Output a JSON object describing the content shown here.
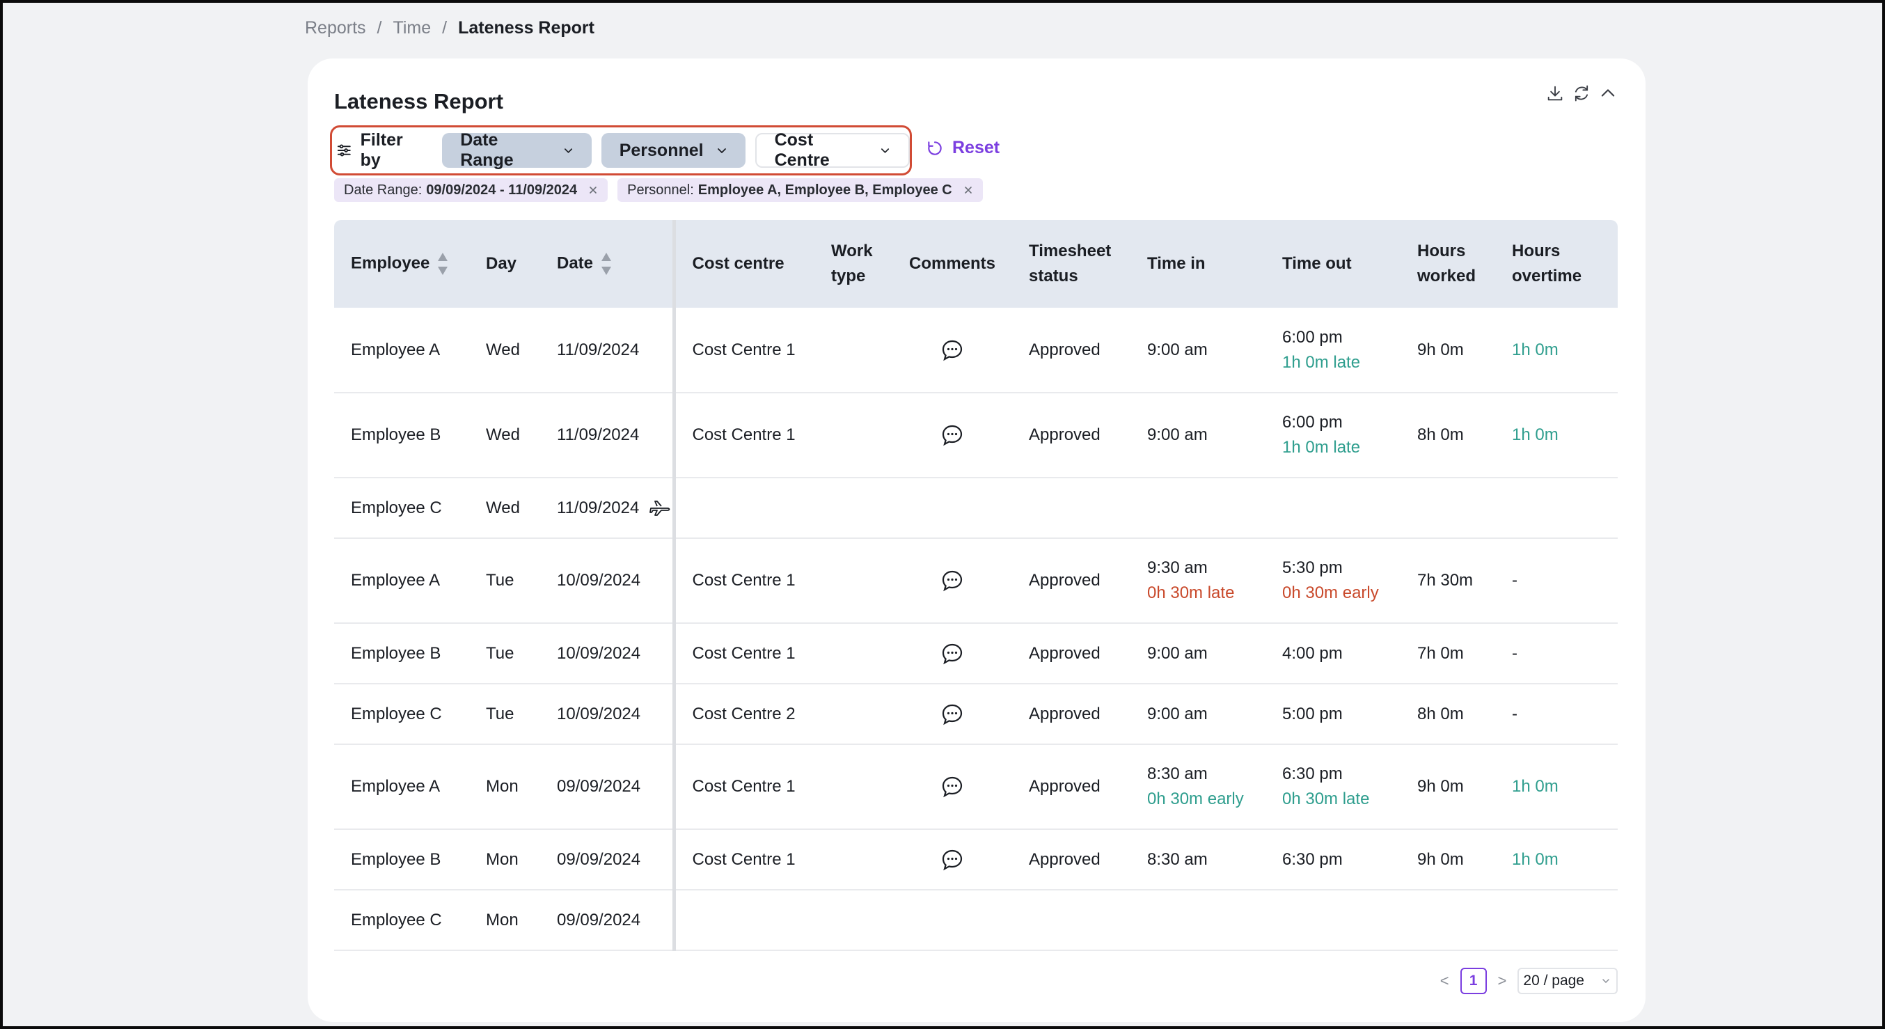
{
  "breadcrumb": {
    "items": [
      "Reports",
      "Time"
    ],
    "current": "Lateness Report",
    "separator": "/"
  },
  "card": {
    "title": "Lateness Report"
  },
  "icons": {
    "download": "download-icon",
    "refresh": "refresh-icon",
    "collapse": "chevron-up-icon"
  },
  "filters": {
    "label": "Filter by",
    "chips": [
      {
        "label": "Date Range",
        "active": true
      },
      {
        "label": "Personnel",
        "active": true
      },
      {
        "label": "Cost Centre",
        "active": false
      }
    ],
    "reset_label": "Reset",
    "tags": [
      {
        "key": "Date Range:",
        "value": "09/09/2024 - 11/09/2024"
      },
      {
        "key": "Personnel:",
        "value": "Employee A, Employee B, Employee C"
      }
    ]
  },
  "table": {
    "columns": [
      "Employee",
      "Day",
      "Date",
      "Cost centre",
      "Work type",
      "Comments",
      "Timesheet status",
      "Time in",
      "Time out",
      "Hours worked",
      "Hours overtime"
    ],
    "rows": [
      {
        "employee": "Employee A",
        "day": "Wed",
        "date": "11/09/2024",
        "cost_centre": "Cost Centre 1",
        "work_type": "",
        "comment": true,
        "status": "Approved",
        "time_in": "9:00 am",
        "time_in_note": "",
        "time_out": "6:00 pm",
        "time_out_note": "1h 0m late",
        "worked": "9h 0m",
        "overtime": "1h 0m"
      },
      {
        "employee": "Employee B",
        "day": "Wed",
        "date": "11/09/2024",
        "cost_centre": "Cost Centre 1",
        "work_type": "",
        "comment": true,
        "status": "Approved",
        "time_in": "9:00 am",
        "time_in_note": "",
        "time_out": "6:00 pm",
        "time_out_note": "1h 0m late",
        "worked": "8h 0m",
        "overtime": "1h 0m"
      },
      {
        "employee": "Employee C",
        "day": "Wed",
        "date": "11/09/2024",
        "leave_icon": true
      },
      {
        "employee": "Employee A",
        "day": "Tue",
        "date": "10/09/2024",
        "cost_centre": "Cost Centre 1",
        "work_type": "",
        "comment": true,
        "status": "Approved",
        "time_in": "9:30 am",
        "time_in_note": "0h 30m late",
        "time_out": "5:30 pm",
        "time_out_note": "0h 30m early",
        "worked": "7h 30m",
        "overtime": "-"
      },
      {
        "employee": "Employee B",
        "day": "Tue",
        "date": "10/09/2024",
        "cost_centre": "Cost Centre 1",
        "work_type": "",
        "comment": true,
        "status": "Approved",
        "time_in": "9:00 am",
        "time_in_note": "",
        "time_out": "4:00 pm",
        "time_out_note": "",
        "worked": "7h 0m",
        "overtime": "-"
      },
      {
        "employee": "Employee C",
        "day": "Tue",
        "date": "10/09/2024",
        "cost_centre": "Cost Centre 2",
        "work_type": "",
        "comment": true,
        "status": "Approved",
        "time_in": "9:00 am",
        "time_in_note": "",
        "time_out": "5:00 pm",
        "time_out_note": "",
        "worked": "8h 0m",
        "overtime": "-"
      },
      {
        "employee": "Employee A",
        "day": "Mon",
        "date": "09/09/2024",
        "cost_centre": "Cost Centre 1",
        "work_type": "",
        "comment": true,
        "status": "Approved",
        "time_in": "8:30 am",
        "time_in_note": "0h 30m early",
        "time_out": "6:30 pm",
        "time_out_note": "0h 30m late",
        "worked": "9h 0m",
        "overtime": "1h 0m"
      },
      {
        "employee": "Employee B",
        "day": "Mon",
        "date": "09/09/2024",
        "cost_centre": "Cost Centre 1",
        "work_type": "",
        "comment": true,
        "status": "Approved",
        "time_in": "8:30 am",
        "time_in_note": "",
        "time_out": "6:30 pm",
        "time_out_note": "",
        "worked": "9h 0m",
        "overtime": "1h 0m"
      },
      {
        "employee": "Employee C",
        "day": "Mon",
        "date": "09/09/2024"
      }
    ]
  },
  "pagination": {
    "current_page": "1",
    "page_size": "20 / page",
    "prev": "<",
    "next": ">"
  },
  "colors": {
    "accent": "#7b3ee0",
    "green": "#2f9e8e",
    "red": "#c94a2c",
    "highlight": "#d14b35",
    "header_bg": "#e3e8f0",
    "chip_bg": "#c6d0de"
  }
}
